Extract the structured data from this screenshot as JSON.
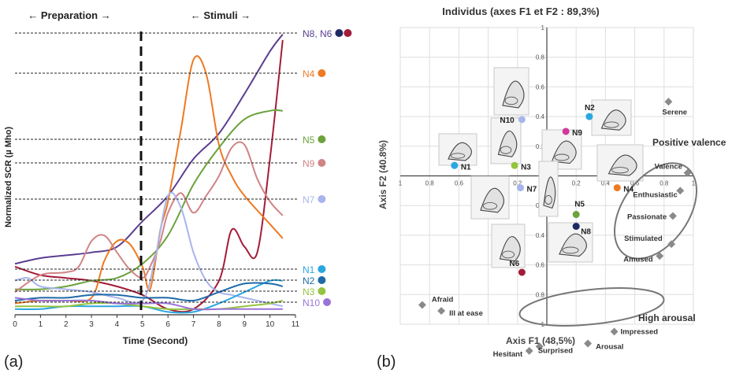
{
  "panel_a_label": "(a)",
  "panel_b_label": "(b)",
  "chart_data": [
    {
      "type": "line",
      "xlabel": "Time (Second)",
      "ylabel": "Normalized  SCR (µ Mho)",
      "xlim": [
        0,
        11
      ],
      "ylim": [
        0,
        1
      ],
      "x_ticks": [
        "0",
        "1",
        "2",
        "3",
        "4",
        "5",
        "6",
        "7",
        "8",
        "9",
        "10",
        "11"
      ],
      "phases": {
        "preparation": "← Preparation →",
        "stimuli": "← Stimuli →",
        "boundary_x": 5
      },
      "grid": false,
      "legend_position": "right",
      "series": [
        {
          "name": "N8, N6",
          "color": "#5b3e91",
          "dot_colors": [
            "#1f2a63",
            "#a31c3a"
          ],
          "x": [
            0,
            1,
            2,
            3,
            4,
            5,
            6,
            7,
            8,
            9,
            10,
            10.5
          ],
          "y": [
            0.18,
            0.2,
            0.21,
            0.22,
            0.24,
            0.33,
            0.42,
            0.55,
            0.64,
            0.78,
            0.93,
            0.99
          ]
        },
        {
          "name": "",
          "color": "#a31c3a",
          "x": [
            0,
            1,
            2,
            3,
            4,
            5,
            6,
            7,
            8,
            8.5,
            9,
            9.5,
            10,
            10.5
          ],
          "y": [
            0.17,
            0.14,
            0.13,
            0.12,
            0.1,
            0.07,
            0.02,
            0.02,
            0.12,
            0.3,
            0.24,
            0.22,
            0.55,
            0.97
          ]
        },
        {
          "name": "N4",
          "color": "#ee7a22",
          "x": [
            0,
            1,
            2,
            3,
            3.5,
            4,
            4.5,
            5,
            5.3,
            5.7,
            6,
            6.5,
            7,
            7.5,
            8,
            8.5,
            9,
            10,
            10.5
          ],
          "y": [
            0.04,
            0.05,
            0.05,
            0.06,
            0.19,
            0.26,
            0.25,
            0.17,
            0.09,
            0.3,
            0.4,
            0.65,
            0.9,
            0.85,
            0.6,
            0.49,
            0.42,
            0.32,
            0.27
          ]
        },
        {
          "name": "N5",
          "color": "#6aa23b",
          "x": [
            0,
            1,
            2,
            3,
            4,
            5,
            6,
            7,
            8,
            9,
            10,
            10.5
          ],
          "y": [
            0.09,
            0.09,
            0.1,
            0.12,
            0.13,
            0.18,
            0.28,
            0.46,
            0.59,
            0.69,
            0.72,
            0.72
          ]
        },
        {
          "name": "N9",
          "color": "#d18486",
          "x": [
            0,
            1,
            2,
            2.5,
            3,
            3.5,
            4,
            4.5,
            5,
            5.3,
            5.7,
            6,
            6.5,
            7,
            7.5,
            8,
            8.5,
            9,
            9.5,
            10,
            10.5
          ],
          "y": [
            0.08,
            0.14,
            0.15,
            0.17,
            0.26,
            0.28,
            0.22,
            0.16,
            0.13,
            0.17,
            0.26,
            0.36,
            0.43,
            0.36,
            0.42,
            0.49,
            0.59,
            0.6,
            0.48,
            0.4,
            0.35
          ]
        },
        {
          "name": "N7",
          "color": "#a7b5ec",
          "x": [
            0,
            0.5,
            1,
            2,
            3,
            4,
            5,
            5.5,
            6,
            6.5,
            7,
            7.5,
            8,
            8.5,
            9,
            9.5,
            10,
            10.5
          ],
          "y": [
            0.12,
            0.13,
            0.1,
            0.09,
            0.08,
            0.06,
            0.05,
            0.2,
            0.42,
            0.38,
            0.22,
            0.12,
            0.08,
            0.07,
            0.06,
            0.05,
            0.04,
            0.03
          ]
        },
        {
          "name": "N1",
          "color": "#2aa7e0",
          "x": [
            0,
            1,
            2,
            3,
            4,
            5,
            6,
            7,
            8,
            9,
            10,
            10.5
          ],
          "y": [
            0.02,
            0.02,
            0.03,
            0.03,
            0.03,
            0.03,
            0.01,
            0.01,
            0.04,
            0.08,
            0.12,
            0.12
          ]
        },
        {
          "name": "N2",
          "color": "#1f6aa8",
          "x": [
            0,
            1,
            2,
            3,
            4,
            5,
            6,
            7,
            8,
            9,
            10,
            10.5
          ],
          "y": [
            0.05,
            0.06,
            0.06,
            0.07,
            0.07,
            0.06,
            0.06,
            0.05,
            0.08,
            0.11,
            0.11,
            0.1
          ]
        },
        {
          "name": "N3",
          "color": "#95c43f",
          "x": [
            0,
            1,
            2,
            3,
            4,
            5,
            6,
            7,
            8,
            9,
            10,
            10.5
          ],
          "y": [
            0.03,
            0.03,
            0.03,
            0.04,
            0.04,
            0.03,
            0.02,
            0.02,
            0.02,
            0.03,
            0.04,
            0.05
          ]
        },
        {
          "name": "N10",
          "color": "#9a73d8",
          "x": [
            0,
            1,
            2,
            3,
            4,
            5,
            6,
            7,
            8,
            9,
            10,
            10.5
          ],
          "y": [
            0.06,
            0.05,
            0.05,
            0.05,
            0.04,
            0.04,
            0.04,
            0.02,
            0.02,
            0.02,
            0.02,
            0.02
          ]
        }
      ]
    },
    {
      "type": "scatter",
      "title": "Individus (axes F1 et F2 : 89,3%)",
      "xlabel": "Axis F1 (48,5%)",
      "ylabel": "Axis  F2 (40.8%)",
      "xlim": [
        -1,
        1
      ],
      "ylim": [
        -1,
        1
      ],
      "x_ticks": [
        "1",
        "0.8",
        "0.6",
        "0.4",
        "0.2",
        "0",
        "0.2",
        "0.4",
        "0.6",
        "0.8",
        "1"
      ],
      "y_ticks": [
        "1",
        "0.8",
        "0.6",
        "0.4",
        "0.2",
        "0",
        "0.2",
        "0.4",
        "0.6",
        "0.8",
        "1"
      ],
      "grid": true,
      "products": [
        {
          "label": "N1",
          "color": "#2aa7e0",
          "x": -0.63,
          "y": 0.07
        },
        {
          "label": "N2",
          "color": "#2aa7e0",
          "x": 0.29,
          "y": 0.4
        },
        {
          "label": "N3",
          "color": "#95c43f",
          "x": -0.22,
          "y": 0.07
        },
        {
          "label": "N4",
          "color": "#ee7a22",
          "x": 0.48,
          "y": -0.08
        },
        {
          "label": "N5",
          "color": "#6aa23b",
          "x": 0.2,
          "y": -0.26
        },
        {
          "label": "N6",
          "color": "#a31c3a",
          "x": -0.17,
          "y": -0.65
        },
        {
          "label": "N7",
          "color": "#a7b5ec",
          "x": -0.18,
          "y": -0.08
        },
        {
          "label": "N8",
          "color": "#1f2a63",
          "x": 0.2,
          "y": -0.34
        },
        {
          "label": "N9",
          "color": "#d13a9a",
          "x": 0.13,
          "y": 0.3
        },
        {
          "label": "N10",
          "color": "#a7b5ec",
          "x": -0.17,
          "y": 0.38
        }
      ],
      "descriptors": [
        {
          "label": "Serene",
          "x": 0.83,
          "y": 0.5
        },
        {
          "label": "Valence",
          "x": 0.96,
          "y": 0.02
        },
        {
          "label": "Enthusiastic",
          "x": 0.91,
          "y": -0.1
        },
        {
          "label": "Passionate",
          "x": 0.86,
          "y": -0.27
        },
        {
          "label": "Stimulated",
          "x": 0.85,
          "y": -0.46
        },
        {
          "label": "Amused",
          "x": 0.77,
          "y": -0.54
        },
        {
          "label": "Afraid",
          "x": -0.85,
          "y": -0.87
        },
        {
          "label": "Ill at ease",
          "x": -0.72,
          "y": -0.91
        },
        {
          "label": "Impressed",
          "x": 0.46,
          "y": -1.05
        },
        {
          "label": "Arousal",
          "x": 0.28,
          "y": -1.13
        },
        {
          "label": "Surprised",
          "x": -0.05,
          "y": -1.15
        },
        {
          "label": "Hesitant",
          "x": -0.12,
          "y": -1.18
        }
      ],
      "group_labels": {
        "positive": "Positive valence",
        "arousal": "High arousal"
      }
    }
  ]
}
